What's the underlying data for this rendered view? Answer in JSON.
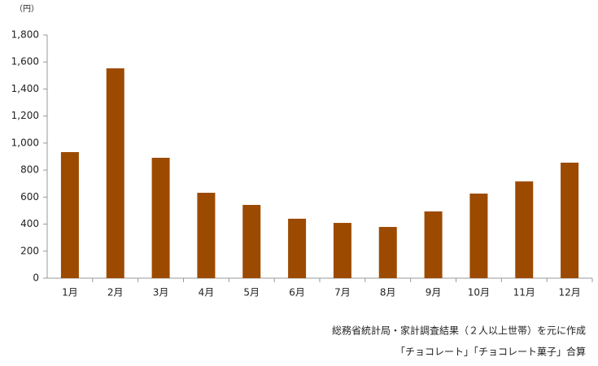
{
  "chart_data": {
    "type": "bar",
    "y_unit": "（円）",
    "categories": [
      "1月",
      "2月",
      "3月",
      "4月",
      "5月",
      "6月",
      "7月",
      "8月",
      "9月",
      "10月",
      "11月",
      "12月"
    ],
    "values": [
      933,
      1553,
      891,
      632,
      542,
      440,
      409,
      379,
      494,
      626,
      716,
      855
    ],
    "color": "#9c4a00",
    "ylim": [
      0,
      1800
    ],
    "yticks": [
      0,
      200,
      400,
      600,
      800,
      {
        "value": 1000,
        "label": "1,000"
      },
      {
        "value": 1200,
        "label": "1,200"
      },
      {
        "value": 1400,
        "label": "1,400"
      },
      {
        "value": 1600,
        "label": "1,600"
      },
      {
        "value": 1800,
        "label": "1,800"
      }
    ],
    "grid": false,
    "notes": [
      "総務省統計局・家計調査結果（２人以上世帯）を元に作成",
      "「チョコレート」「チョコレート菓子」合算"
    ]
  }
}
